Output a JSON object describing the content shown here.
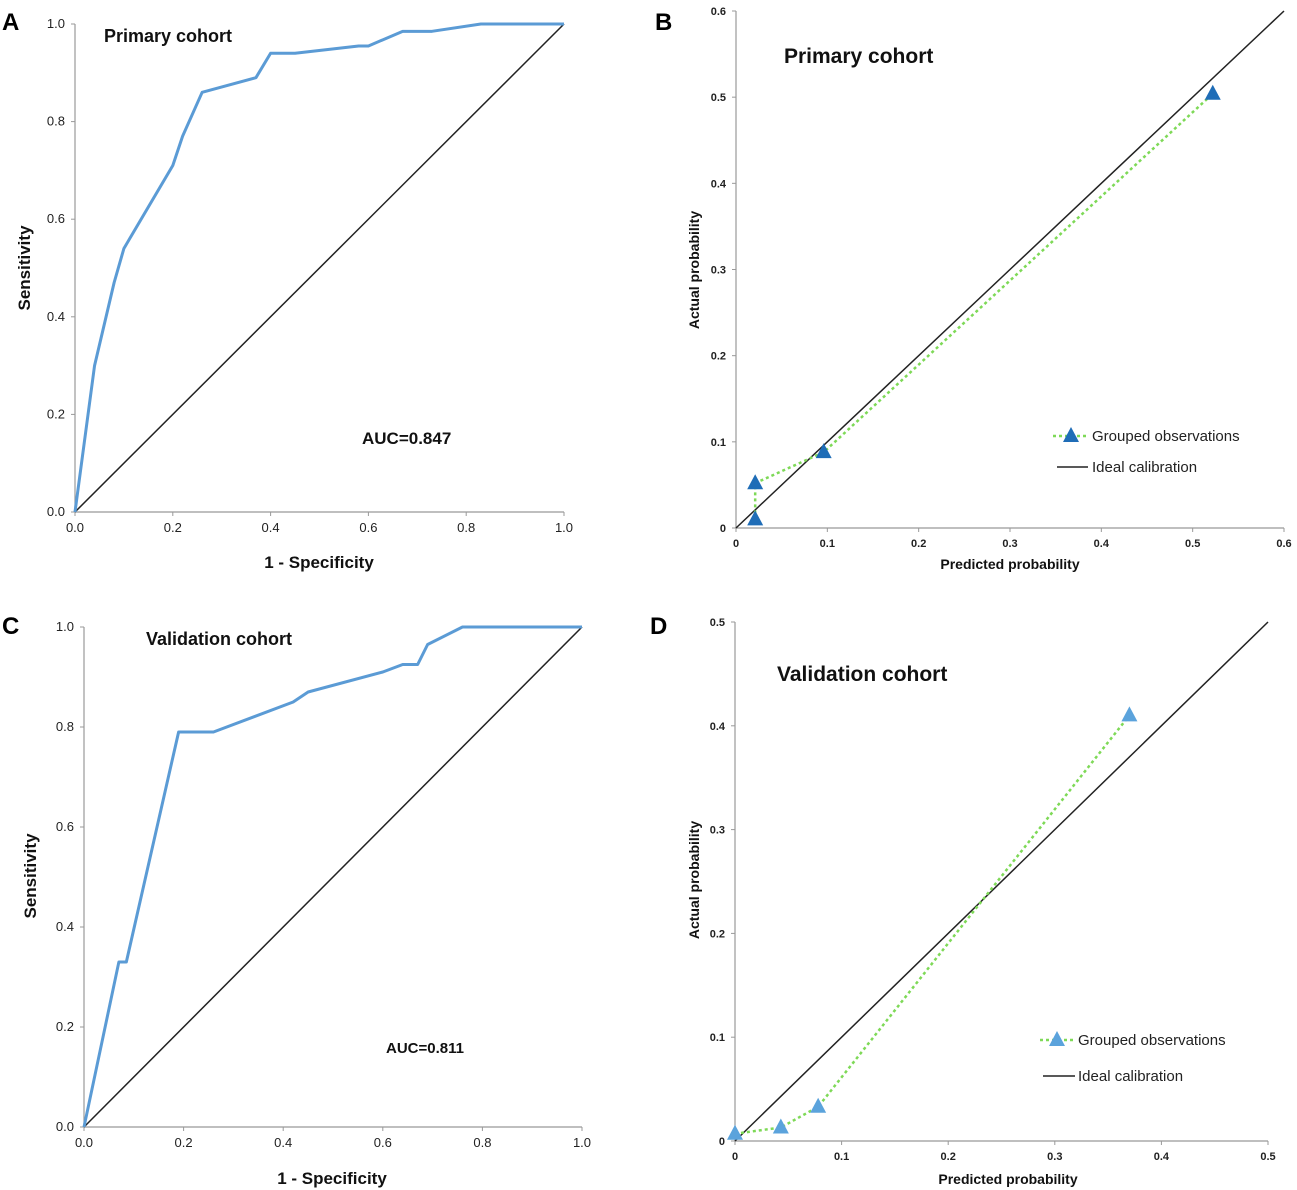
{
  "figure_labels": [
    "A",
    "B",
    "C",
    "D"
  ],
  "colors": {
    "roc_curve": "#5b9bd5",
    "diagonal": "#222222",
    "axis": "#999999",
    "calib_line": "#7ed957",
    "marker_primary": "#1f6db7",
    "marker_validation": "#5ba3dc"
  },
  "chart_data": [
    {
      "panel": "A",
      "type": "line",
      "title": "Primary cohort",
      "xlabel": "1 - Specificity",
      "ylabel": "Sensitivity",
      "xlim": [
        0,
        1
      ],
      "ylim": [
        0,
        1
      ],
      "xticks": [
        "0.0",
        "0.2",
        "0.4",
        "0.6",
        "0.8",
        "1.0"
      ],
      "yticks": [
        "0.0",
        "0.2",
        "0.4",
        "0.6",
        "0.8",
        "1.0"
      ],
      "annotation": "AUC=0.847",
      "series": [
        {
          "name": "ROC",
          "x": [
            0,
            0.04,
            0.08,
            0.1,
            0.2,
            0.22,
            0.26,
            0.37,
            0.4,
            0.45,
            0.58,
            0.6,
            0.67,
            0.73,
            0.83,
            1.0
          ],
          "y": [
            0,
            0.3,
            0.47,
            0.54,
            0.71,
            0.77,
            0.86,
            0.89,
            0.94,
            0.94,
            0.955,
            0.955,
            0.985,
            0.985,
            1.0,
            1.0
          ]
        },
        {
          "name": "Reference",
          "x": [
            0,
            1
          ],
          "y": [
            0,
            1
          ]
        }
      ]
    },
    {
      "panel": "B",
      "type": "scatter",
      "title": "Primary cohort",
      "xlabel": "Predicted probability",
      "ylabel": "Actual probability",
      "xlim": [
        0,
        0.6
      ],
      "ylim": [
        0,
        0.6
      ],
      "xticks": [
        "0",
        "0.1",
        "0.2",
        "0.3",
        "0.4",
        "0.5",
        "0.6"
      ],
      "yticks": [
        "0",
        "0.1",
        "0.2",
        "0.3",
        "0.4",
        "0.5",
        "0.6"
      ],
      "legend": [
        "Grouped observations",
        "Ideal calibration"
      ],
      "series": [
        {
          "name": "Grouped observations",
          "x": [
            0.021,
            0.021,
            0.096,
            0.522
          ],
          "y": [
            0.01,
            0.052,
            0.088,
            0.504
          ]
        },
        {
          "name": "Ideal calibration",
          "x": [
            0,
            0.6
          ],
          "y": [
            0,
            0.6
          ]
        }
      ]
    },
    {
      "panel": "C",
      "type": "line",
      "title": "Validation cohort",
      "xlabel": "1 - Specificity",
      "ylabel": "Sensitivity",
      "xlim": [
        0,
        1
      ],
      "ylim": [
        0,
        1
      ],
      "xticks": [
        "0.0",
        "0.2",
        "0.4",
        "0.6",
        "0.8",
        "1.0"
      ],
      "yticks": [
        "0.0",
        "0.2",
        "0.4",
        "0.6",
        "0.8",
        "1.0"
      ],
      "annotation": "AUC=0.811",
      "series": [
        {
          "name": "ROC",
          "x": [
            0,
            0.07,
            0.085,
            0.19,
            0.26,
            0.42,
            0.45,
            0.6,
            0.64,
            0.67,
            0.69,
            0.76,
            1.0
          ],
          "y": [
            0,
            0.33,
            0.33,
            0.79,
            0.79,
            0.85,
            0.87,
            0.91,
            0.925,
            0.925,
            0.965,
            1.0,
            1.0
          ]
        },
        {
          "name": "Reference",
          "x": [
            0,
            1
          ],
          "y": [
            0,
            1
          ]
        }
      ]
    },
    {
      "panel": "D",
      "type": "scatter",
      "title": "Validation cohort",
      "xlabel": "Predicted probability",
      "ylabel": "Actual probability",
      "xlim": [
        0,
        0.5
      ],
      "ylim": [
        0,
        0.5
      ],
      "xticks": [
        "0",
        "0.1",
        "0.2",
        "0.3",
        "0.4",
        "0.5"
      ],
      "yticks": [
        "0",
        "0.1",
        "0.2",
        "0.3",
        "0.4",
        "0.5"
      ],
      "legend": [
        "Grouped observations",
        "Ideal calibration"
      ],
      "series": [
        {
          "name": "Grouped observations",
          "x": [
            0,
            0.043,
            0.078,
            0.37
          ],
          "y": [
            0.007,
            0.013,
            0.033,
            0.41
          ]
        },
        {
          "name": "Ideal calibration",
          "x": [
            0,
            0.5
          ],
          "y": [
            0,
            0.5
          ]
        }
      ]
    }
  ]
}
